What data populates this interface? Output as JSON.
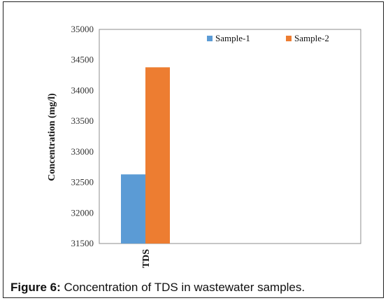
{
  "caption": {
    "label": "Figure 6:",
    "text": "Concentration of TDS in wastewater samples."
  },
  "chart_data": {
    "type": "bar",
    "categories": [
      "TDS"
    ],
    "series": [
      {
        "name": "Sample-1",
        "values": [
          32630
        ],
        "color": "#5b9bd5"
      },
      {
        "name": "Sample-2",
        "values": [
          34380
        ],
        "color": "#ed7d31"
      }
    ],
    "xlabel": "",
    "ylabel": "Concentration (mg/l)",
    "ylim": [
      31500,
      35000
    ],
    "yticks": [
      31500,
      32000,
      32500,
      33000,
      33500,
      34000,
      34500,
      35000
    ],
    "grid": false,
    "legend": "top-right"
  }
}
